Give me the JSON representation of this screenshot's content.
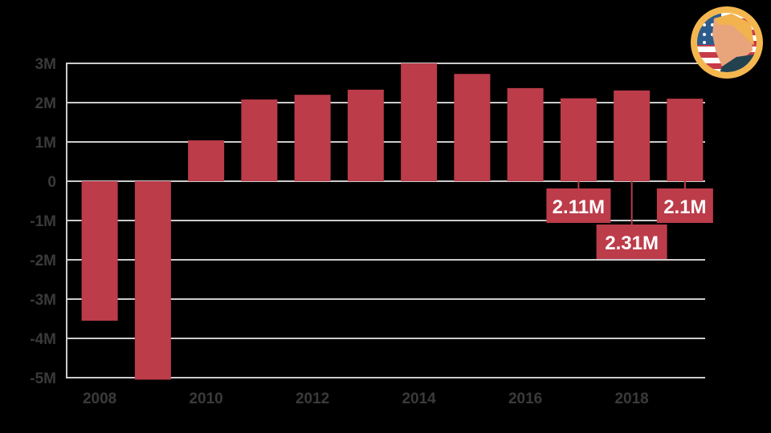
{
  "chart_data": {
    "type": "bar",
    "title": "",
    "xlabel": "",
    "ylabel": "",
    "categories": [
      "2008",
      "2009",
      "2010",
      "2011",
      "2012",
      "2013",
      "2014",
      "2015",
      "2016",
      "2017",
      "2018",
      "2019"
    ],
    "values": [
      -3550000,
      -5050000,
      1040000,
      2080000,
      2200000,
      2330000,
      3000000,
      2730000,
      2370000,
      2110000,
      2310000,
      2100000
    ],
    "ylim": [
      -5000000,
      3000000
    ],
    "yticks": [
      3000000,
      2000000,
      1000000,
      0,
      -1000000,
      -2000000,
      -3000000,
      -4000000,
      -5000000
    ],
    "ytick_labels": [
      "3M",
      "2M",
      "1M",
      "0",
      "-1M",
      "-2M",
      "-3M",
      "-4M",
      "-5M"
    ],
    "xtick_labels": [
      "2008",
      "2010",
      "2012",
      "2014",
      "2016",
      "2018"
    ],
    "grid": true,
    "bar_color": "#bc3c4a",
    "annotations": [
      {
        "category": "2017",
        "label": "2.11M"
      },
      {
        "category": "2018",
        "label": "2.31M"
      },
      {
        "category": "2019",
        "label": "2.1M"
      }
    ]
  },
  "colors": {
    "background": "#000000",
    "bar": "#bc3c4a",
    "grid": "#cccccc",
    "tick_text": "#3a3a3a",
    "annotation_text": "#ffffff"
  },
  "logo": {
    "icon": "president-portrait-badge-icon"
  }
}
